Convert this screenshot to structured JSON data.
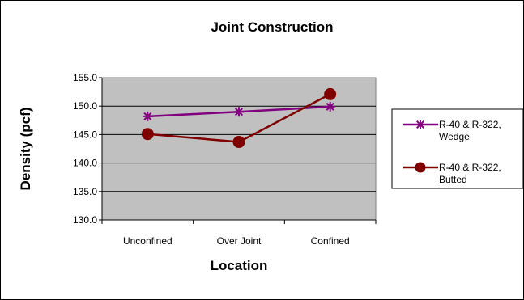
{
  "chart_data": {
    "type": "line",
    "title": "Joint Construction",
    "xlabel": "Location",
    "ylabel": "Density (pcf)",
    "categories": [
      "Unconfined",
      "Over Joint",
      "Confined"
    ],
    "ylim": [
      130.0,
      155.0
    ],
    "ytick_step": 5,
    "yticks": [
      "130.0",
      "135.0",
      "140.0",
      "145.0",
      "150.0",
      "155.0"
    ],
    "plot_background": "#c0c0c0",
    "grid": true,
    "legend_position": "right",
    "series": [
      {
        "name": "R-40 & R-322, Wedge",
        "name_lines": [
          "R-40 & R-322,",
          "Wedge"
        ],
        "values": [
          148.2,
          149.0,
          149.9
        ],
        "color": "#800080",
        "marker": "star"
      },
      {
        "name": "R-40 & R-322, Butted",
        "name_lines": [
          "R-40 & R-322,",
          "Butted"
        ],
        "values": [
          145.1,
          143.7,
          152.1
        ],
        "color": "#800000",
        "marker": "circle"
      }
    ]
  }
}
